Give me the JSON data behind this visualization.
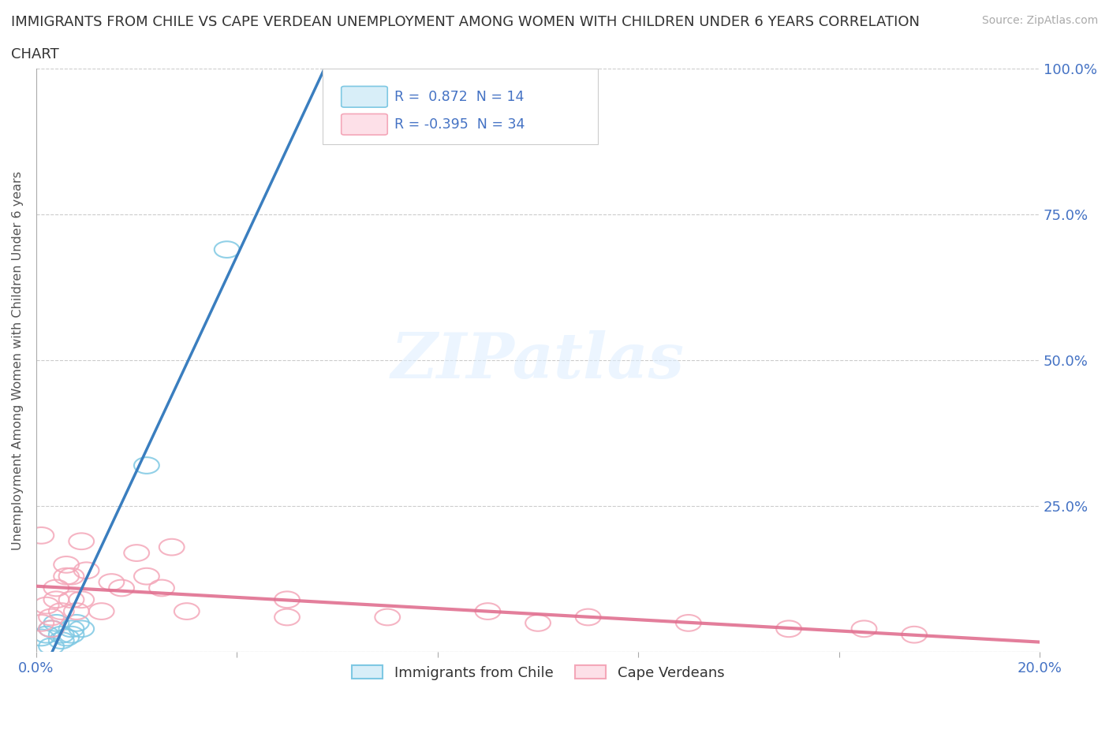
{
  "title_line1": "IMMIGRANTS FROM CHILE VS CAPE VERDEAN UNEMPLOYMENT AMONG WOMEN WITH CHILDREN UNDER 6 YEARS CORRELATION",
  "title_line2": "CHART",
  "source": "Source: ZipAtlas.com",
  "ylabel": "Unemployment Among Women with Children Under 6 years",
  "watermark": "ZIPatlas",
  "legend_chile_label": "Immigrants from Chile",
  "legend_cv_label": "Cape Verdeans",
  "chile_R": "0.872",
  "chile_N": "14",
  "cv_R": "-0.395",
  "cv_N": "34",
  "chile_color": "#7ec8e3",
  "cv_color": "#f4a7b9",
  "chile_line_color": "#3a7ebf",
  "cv_line_color": "#e07090",
  "chile_scatter_x": [
    0.001,
    0.002,
    0.003,
    0.003,
    0.004,
    0.005,
    0.005,
    0.006,
    0.007,
    0.007,
    0.008,
    0.009,
    0.022,
    0.038
  ],
  "chile_scatter_y": [
    0.025,
    0.03,
    0.01,
    0.04,
    0.05,
    0.02,
    0.03,
    0.025,
    0.04,
    0.03,
    0.05,
    0.04,
    0.32,
    0.69
  ],
  "cv_scatter_x": [
    0.001,
    0.001,
    0.002,
    0.003,
    0.003,
    0.004,
    0.004,
    0.005,
    0.006,
    0.006,
    0.007,
    0.007,
    0.008,
    0.009,
    0.009,
    0.01,
    0.013,
    0.015,
    0.017,
    0.02,
    0.022,
    0.025,
    0.027,
    0.03,
    0.05,
    0.05,
    0.07,
    0.09,
    0.1,
    0.11,
    0.13,
    0.15,
    0.165,
    0.175
  ],
  "cv_scatter_y": [
    0.2,
    0.05,
    0.08,
    0.06,
    0.04,
    0.09,
    0.11,
    0.07,
    0.13,
    0.15,
    0.09,
    0.13,
    0.07,
    0.09,
    0.19,
    0.14,
    0.07,
    0.12,
    0.11,
    0.17,
    0.13,
    0.11,
    0.18,
    0.07,
    0.09,
    0.06,
    0.06,
    0.07,
    0.05,
    0.06,
    0.05,
    0.04,
    0.04,
    0.03
  ],
  "xlim": [
    0.0,
    0.2
  ],
  "ylim": [
    0.0,
    1.0
  ],
  "x_ticks": [
    0.0,
    0.04,
    0.08,
    0.12,
    0.16,
    0.2
  ],
  "y_ticks": [
    0.0,
    0.25,
    0.5,
    0.75,
    1.0
  ],
  "right_y_labels": [
    "",
    "25.0%",
    "50.0%",
    "75.0%",
    "100.0%"
  ],
  "x_labels": [
    "0.0%",
    "",
    "",
    "",
    "",
    "20.0%"
  ],
  "background_color": "#ffffff",
  "grid_color": "#cccccc",
  "title_color": "#333333",
  "axis_tick_color": "#4472c4",
  "source_color": "#aaaaaa"
}
